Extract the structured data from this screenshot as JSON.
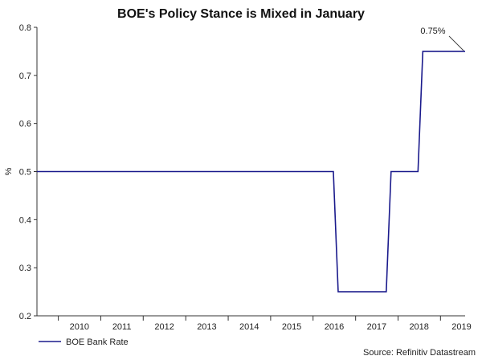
{
  "chart_data": {
    "type": "line",
    "title": "BOE's Policy Stance is Mixed in January",
    "ylabel": "%",
    "xlabel": "",
    "ylim": [
      0.2,
      0.8
    ],
    "xlim": [
      "2009-07-01",
      "2019-08-01"
    ],
    "yticks": [
      "0.2",
      "0.3",
      "0.4",
      "0.5",
      "0.6",
      "0.7",
      "0.8"
    ],
    "xticks": [
      "2010",
      "2011",
      "2012",
      "2013",
      "2014",
      "2015",
      "2016",
      "2017",
      "2018",
      "2019"
    ],
    "grid": false,
    "legend_position": "bottom-left",
    "series": [
      {
        "name": "BOE Bank Rate",
        "color": "#1a1a8c",
        "step": true,
        "x": [
          "2009-07-01",
          "2016-08-04",
          "2017-11-02",
          "2018-08-02",
          "2019-08-01"
        ],
        "y": [
          0.5,
          0.25,
          0.5,
          0.75,
          0.75
        ]
      }
    ],
    "annotations": [
      {
        "text": "0.75%",
        "x": "2019-08-01",
        "y": 0.75
      }
    ],
    "source": "Source: Refinitiv Datastream"
  }
}
